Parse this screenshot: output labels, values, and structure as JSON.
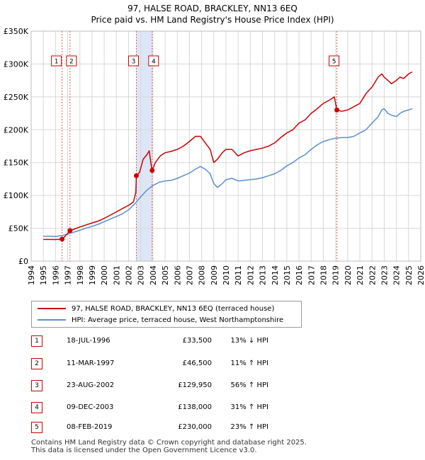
{
  "title_line1": "97, HALSE ROAD, BRACKLEY, NN13 6EQ",
  "title_line2": "Price paid vs. HM Land Registry's House Price Index (HPI)",
  "colors": {
    "property": "#cc0000",
    "hpi": "#5b8fcf",
    "shade": "#dde6f5",
    "grid": "#d8d8d8",
    "vline": "#e05555"
  },
  "chart_data": {
    "type": "line",
    "xlabel": "",
    "ylabel": "",
    "xlim": [
      1994,
      2026
    ],
    "ylim": [
      0,
      350000
    ],
    "y_ticks": [
      0,
      50000,
      100000,
      150000,
      200000,
      250000,
      300000,
      350000
    ],
    "y_tick_labels": [
      "£0",
      "£50K",
      "£100K",
      "£150K",
      "£200K",
      "£250K",
      "£300K",
      "£350K"
    ],
    "x_ticks": [
      1994,
      1995,
      1996,
      1997,
      1998,
      1999,
      2000,
      2001,
      2002,
      2003,
      2004,
      2005,
      2006,
      2007,
      2008,
      2009,
      2010,
      2011,
      2012,
      2013,
      2014,
      2015,
      2016,
      2017,
      2018,
      2019,
      2020,
      2021,
      2022,
      2023,
      2024,
      2025,
      2026
    ],
    "x_tick_labels": [
      "1994",
      "1995",
      "1996",
      "1997",
      "1998",
      "1999",
      "2000",
      "2001",
      "2002",
      "2003",
      "2004",
      "2005",
      "2006",
      "2007",
      "2008",
      "2009",
      "2010",
      "2011",
      "2012",
      "2013",
      "2014",
      "2015",
      "2016",
      "2017",
      "2018",
      "2019",
      "2020",
      "2021",
      "2022",
      "2023",
      "2024",
      "2025",
      "2026"
    ],
    "shaded_regions": [
      [
        2002.64,
        2003.94
      ]
    ],
    "series": [
      {
        "name": "97, HALSE ROAD, BRACKLEY, NN13 6EQ (terraced house)",
        "color": "#cc0000",
        "x": [
          1995.0,
          1995.5,
          1996.0,
          1996.54,
          1996.8,
          1997.19,
          1997.5,
          1998.0,
          1998.5,
          1999.0,
          1999.5,
          2000.0,
          2000.5,
          2001.0,
          2001.5,
          2002.0,
          2002.4,
          2002.6,
          2002.64,
          2002.9,
          2003.2,
          2003.5,
          2003.7,
          2003.9,
          2003.94,
          2004.2,
          2004.6,
          2005.0,
          2005.5,
          2006.0,
          2006.5,
          2007.0,
          2007.5,
          2007.9,
          2008.3,
          2008.7,
          2009.0,
          2009.3,
          2009.7,
          2010.0,
          2010.5,
          2011.0,
          2011.5,
          2012.0,
          2012.5,
          2013.0,
          2013.5,
          2014.0,
          2014.5,
          2015.0,
          2015.5,
          2016.0,
          2016.5,
          2017.0,
          2017.5,
          2018.0,
          2018.5,
          2018.9,
          2019.11,
          2019.5,
          2020.0,
          2020.5,
          2021.0,
          2021.5,
          2022.0,
          2022.5,
          2022.8,
          2023.0,
          2023.3,
          2023.6,
          2024.0,
          2024.3,
          2024.6,
          2025.0,
          2025.3
        ],
        "values": [
          33000,
          33000,
          32800,
          33500,
          38000,
          46500,
          48500,
          52000,
          55000,
          58000,
          61000,
          65000,
          70000,
          75000,
          80000,
          85000,
          90000,
          105000,
          129950,
          135000,
          155000,
          162000,
          168000,
          140000,
          138000,
          150000,
          160000,
          165000,
          167000,
          170000,
          175000,
          182000,
          190000,
          190000,
          180000,
          170000,
          150000,
          155000,
          165000,
          170000,
          170000,
          160000,
          165000,
          168000,
          170000,
          172000,
          175000,
          180000,
          188000,
          195000,
          200000,
          210000,
          215000,
          225000,
          232000,
          240000,
          245000,
          250000,
          230000,
          228000,
          230000,
          235000,
          240000,
          255000,
          265000,
          280000,
          285000,
          280000,
          275000,
          270000,
          275000,
          280000,
          278000,
          285000,
          288000
        ]
      },
      {
        "name": "HPI: Average price, terraced house, West Northamptonshire",
        "color": "#5b8fcf",
        "x": [
          1995.0,
          1995.5,
          1996.0,
          1996.5,
          1997.0,
          1997.5,
          1998.0,
          1998.5,
          1999.0,
          1999.5,
          2000.0,
          2000.5,
          2001.0,
          2001.5,
          2002.0,
          2002.5,
          2003.0,
          2003.5,
          2004.0,
          2004.5,
          2005.0,
          2005.5,
          2006.0,
          2006.5,
          2007.0,
          2007.5,
          2007.9,
          2008.3,
          2008.7,
          2009.0,
          2009.3,
          2009.7,
          2010.0,
          2010.5,
          2011.0,
          2011.5,
          2012.0,
          2012.5,
          2013.0,
          2013.5,
          2014.0,
          2014.5,
          2015.0,
          2015.5,
          2016.0,
          2016.5,
          2017.0,
          2017.5,
          2018.0,
          2018.5,
          2019.0,
          2019.5,
          2020.0,
          2020.5,
          2021.0,
          2021.5,
          2022.0,
          2022.5,
          2022.8,
          2023.0,
          2023.3,
          2023.6,
          2024.0,
          2024.3,
          2024.6,
          2025.0,
          2025.3
        ],
        "values": [
          38000,
          38000,
          37500,
          39000,
          41000,
          44000,
          47000,
          50000,
          53000,
          56000,
          60000,
          64000,
          68000,
          72000,
          78000,
          87000,
          98000,
          108000,
          115000,
          120000,
          122000,
          123000,
          126000,
          130000,
          134000,
          140000,
          144000,
          140000,
          133000,
          118000,
          112000,
          118000,
          124000,
          126000,
          122000,
          123000,
          124000,
          125000,
          127000,
          130000,
          133000,
          138000,
          145000,
          150000,
          157000,
          162000,
          170000,
          177000,
          182000,
          185000,
          187000,
          188000,
          188000,
          190000,
          195000,
          200000,
          210000,
          220000,
          230000,
          232000,
          225000,
          222000,
          220000,
          225000,
          228000,
          230000,
          232000
        ]
      }
    ],
    "sales": [
      {
        "label": "1",
        "x": 1996.54,
        "value": 33500
      },
      {
        "label": "2",
        "x": 1997.19,
        "value": 46500
      },
      {
        "label": "3",
        "x": 2002.64,
        "value": 129950
      },
      {
        "label": "4",
        "x": 2003.94,
        "value": 138000
      },
      {
        "label": "5",
        "x": 2019.11,
        "value": 230000
      }
    ]
  },
  "legend": {
    "property": "97, HALSE ROAD, BRACKLEY, NN13 6EQ (terraced house)",
    "hpi": "HPI: Average price, terraced house, West Northamptonshire"
  },
  "transactions": [
    {
      "num": "1",
      "date": "18-JUL-1996",
      "price": "£33,500",
      "hpi": "13% ↓ HPI"
    },
    {
      "num": "2",
      "date": "11-MAR-1997",
      "price": "£46,500",
      "hpi": "11% ↑ HPI"
    },
    {
      "num": "3",
      "date": "23-AUG-2002",
      "price": "£129,950",
      "hpi": "56% ↑ HPI"
    },
    {
      "num": "4",
      "date": "09-DEC-2003",
      "price": "£138,000",
      "hpi": "31% ↑ HPI"
    },
    {
      "num": "5",
      "date": "08-FEB-2019",
      "price": "£230,000",
      "hpi": "23% ↑ HPI"
    }
  ],
  "footer_line1": "Contains HM Land Registry data © Crown copyright and database right 2025.",
  "footer_line2": "This data is licensed under the Open Government Licence v3.0."
}
